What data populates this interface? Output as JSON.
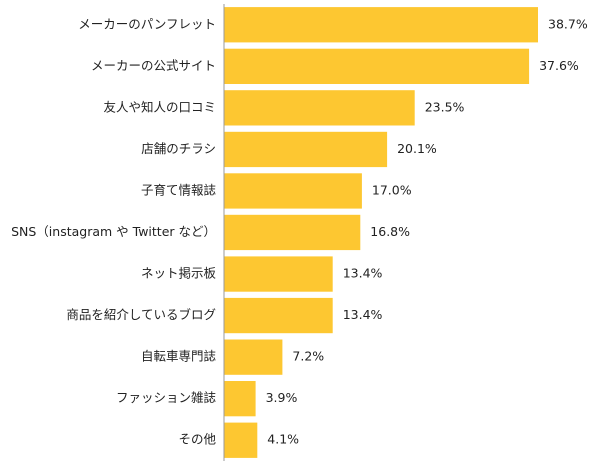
{
  "chart_data": {
    "type": "bar",
    "orientation": "horizontal",
    "categories": [
      "メーカーのパンフレット",
      "メーカーの公式サイト",
      "友人や知人の口コミ",
      "店舗のチラシ",
      "子育て情報誌",
      "SNS（instagram や Twitter など）",
      "ネット掲示板",
      "商品を紹介しているブログ",
      "自転車専門誌",
      "ファッション雑誌",
      "その他"
    ],
    "values": [
      38.7,
      37.6,
      23.5,
      20.1,
      17.0,
      16.8,
      13.4,
      13.4,
      7.2,
      3.9,
      4.1
    ],
    "value_labels": [
      "38.7%",
      "37.6%",
      "23.5%",
      "20.1%",
      "17.0%",
      "16.8%",
      "13.4%",
      "13.4%",
      "7.2%",
      "3.9%",
      "4.1%"
    ],
    "xlim": [
      0,
      45
    ],
    "grid": false,
    "bar_color": "#FDC731",
    "axis_color": "#9a9a9a"
  }
}
